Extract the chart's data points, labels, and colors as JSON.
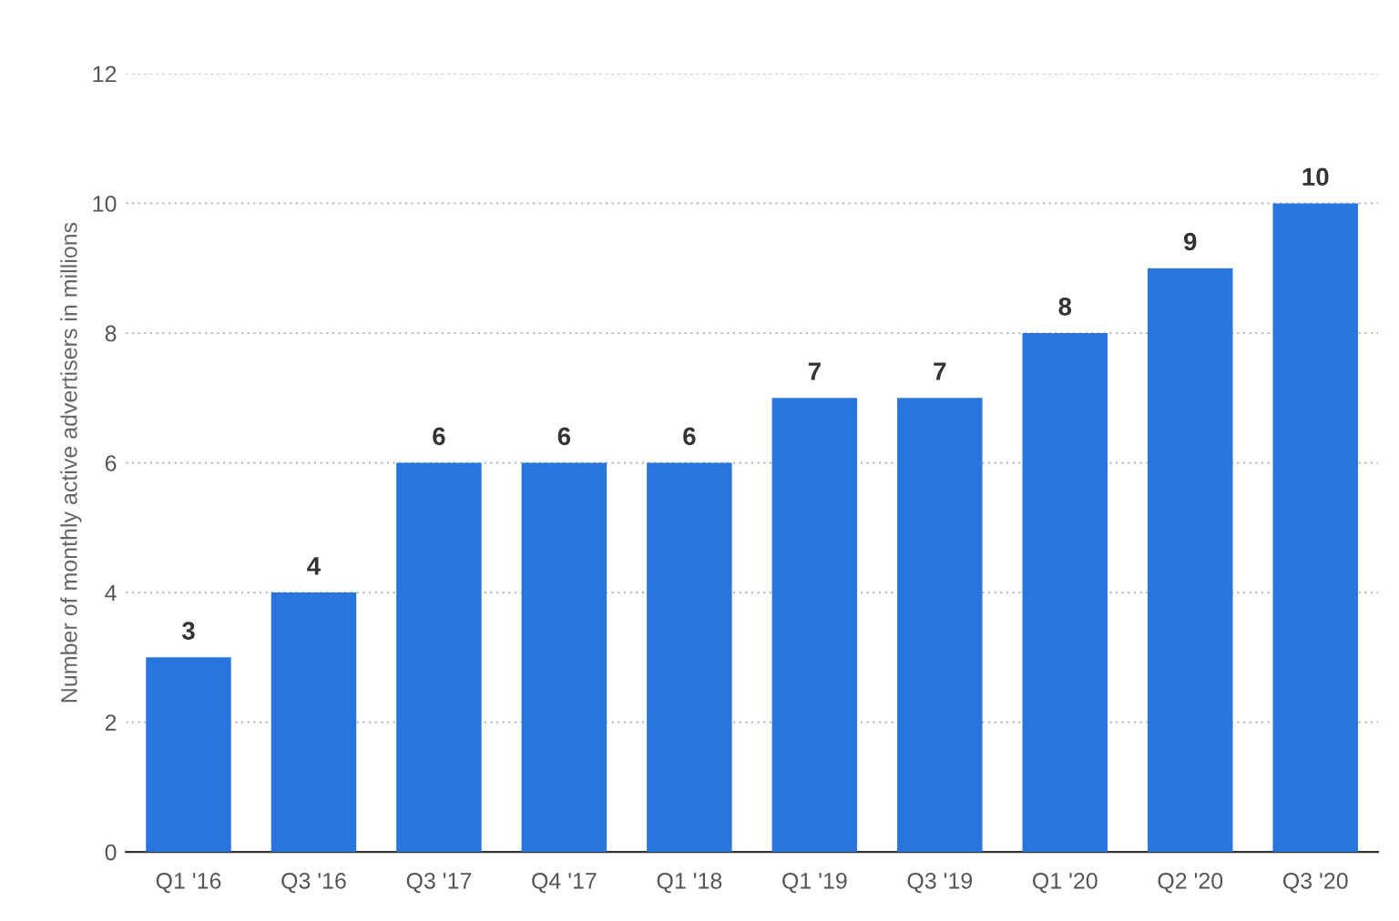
{
  "chart_data": {
    "type": "bar",
    "ylabel": "Number of monthly active advertisers in millions",
    "categories": [
      "Q1 '16",
      "Q3 '16",
      "Q3 '17",
      "Q4 '17",
      "Q1 '18",
      "Q1 '19",
      "Q3 '19",
      "Q1 '20",
      "Q2 '20",
      "Q3 '20"
    ],
    "values": [
      3,
      4,
      6,
      6,
      6,
      7,
      7,
      8,
      9,
      10
    ],
    "color": "#2876dd",
    "ylim": [
      0,
      12
    ],
    "yticks": [
      0,
      2,
      4,
      6,
      8,
      10,
      12
    ],
    "grid": "y",
    "data_labels": true
  }
}
